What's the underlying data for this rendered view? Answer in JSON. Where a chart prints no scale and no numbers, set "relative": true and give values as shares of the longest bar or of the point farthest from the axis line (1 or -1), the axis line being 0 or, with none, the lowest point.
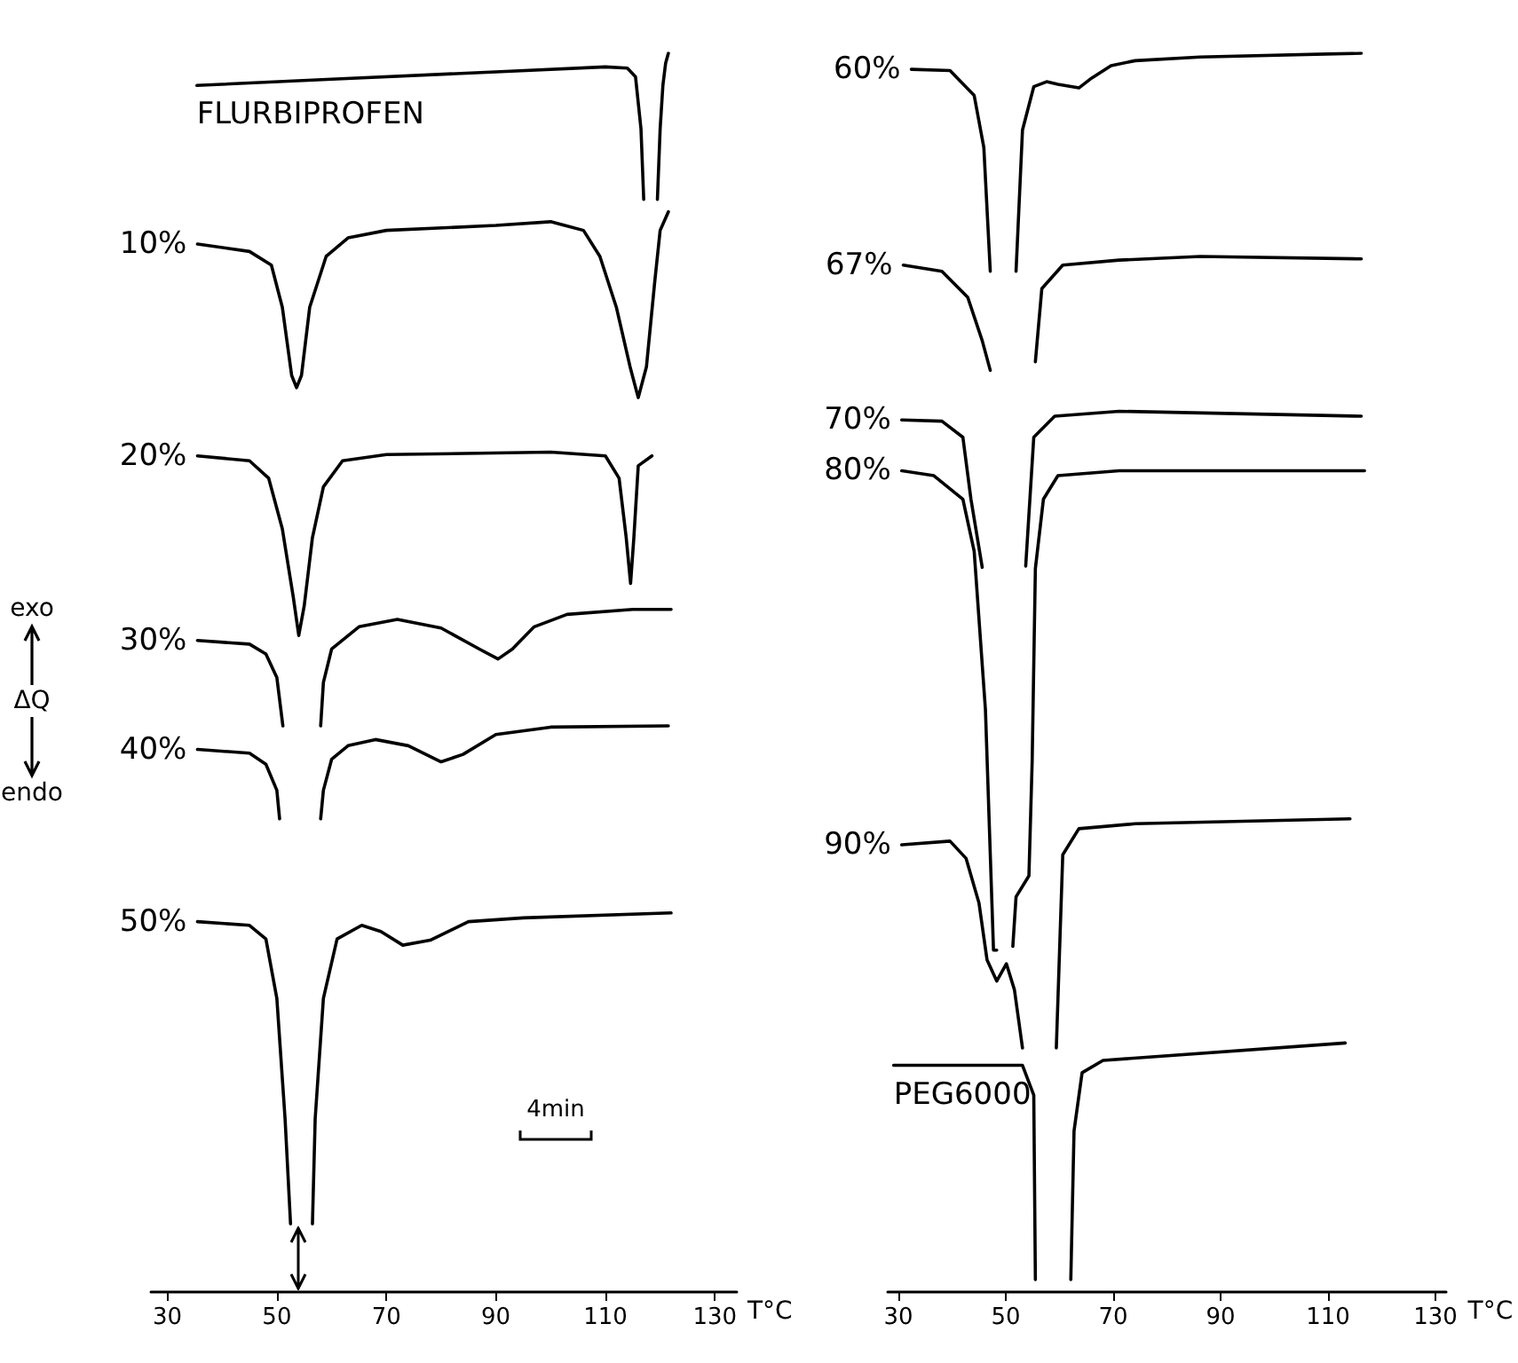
{
  "chart_data": [
    {
      "type": "line",
      "relative": true,
      "xlabel": "T°C",
      "ylabel": "ΔQ",
      "annotations": [
        "exo",
        "endo",
        "4min"
      ],
      "xlim": [
        27,
        134
      ],
      "xticks": [
        30,
        50,
        70,
        90,
        110,
        130
      ],
      "marker": "none",
      "line_style": "solid",
      "grid": false,
      "legend": false,
      "series": [
        {
          "name": "FLURBIPROFEN",
          "color": "#000000",
          "x": [
            35.4,
            60,
            90,
            110,
            114,
            115.5,
            116.5,
            117,
            118,
            119.5,
            120,
            120.5,
            121,
            121.5
          ],
          "values": [
            0.974,
            0.979,
            0.985,
            0.989,
            0.988,
            0.981,
            0.939,
            0.882,
            null,
            0.882,
            0.939,
            0.974,
            0.992,
            1.0
          ]
        },
        {
          "name": "10%",
          "color": "#000000",
          "x": [
            35.5,
            45,
            49,
            51,
            52.7,
            53.6,
            54.5,
            56,
            59,
            63,
            70,
            90,
            100,
            106,
            109,
            112,
            114.5,
            116,
            117.5,
            119,
            120,
            121.5
          ],
          "values": [
            0.846,
            0.84,
            0.829,
            0.795,
            0.74,
            0.73,
            0.74,
            0.795,
            0.836,
            0.851,
            0.857,
            0.861,
            0.864,
            0.857,
            0.836,
            0.795,
            0.747,
            0.722,
            0.747,
            0.815,
            0.857,
            0.872
          ]
        },
        {
          "name": "20%",
          "color": "#000000",
          "x": [
            35.5,
            45,
            48.5,
            51,
            53,
            54,
            55,
            56.5,
            58.5,
            62,
            70,
            100,
            110,
            112.5,
            113.8,
            114.6,
            115.2,
            116,
            118.5
          ],
          "values": [
            0.675,
            0.671,
            0.657,
            0.616,
            0.561,
            0.53,
            0.554,
            0.609,
            0.65,
            0.671,
            0.676,
            0.678,
            0.675,
            0.657,
            0.609,
            0.572,
            0.609,
            0.667,
            0.675
          ]
        },
        {
          "name": "30%",
          "color": "#000000",
          "x": [
            35.5,
            45,
            48,
            50,
            51.1,
            54,
            58,
            58.5,
            60,
            65,
            72,
            80,
            87,
            90.4,
            93,
            97,
            103,
            115,
            122
          ],
          "values": [
            0.526,
            0.523,
            0.515,
            0.496,
            0.457,
            null,
            0.457,
            0.492,
            0.519,
            0.537,
            0.543,
            0.536,
            0.519,
            0.511,
            0.519,
            0.537,
            0.547,
            0.551,
            0.551
          ]
        },
        {
          "name": "40%",
          "color": "#000000",
          "x": [
            35.5,
            45,
            48,
            50,
            50.5,
            54,
            58,
            58.5,
            60,
            63,
            68,
            74,
            80,
            84,
            90,
            100,
            121.5
          ],
          "values": [
            0.438,
            0.435,
            0.426,
            0.405,
            0.382,
            null,
            0.382,
            0.405,
            0.43,
            0.441,
            0.446,
            0.441,
            0.428,
            0.434,
            0.45,
            0.456,
            0.457
          ]
        },
        {
          "name": "50%",
          "color": "#000000",
          "x": [
            35.5,
            45,
            48,
            50,
            51.5,
            52.5,
            54.5,
            56.5,
            57,
            58.5,
            61,
            65.5,
            69,
            73,
            78,
            85,
            95,
            122
          ],
          "values": [
            0.299,
            0.296,
            0.285,
            0.237,
            0.14,
            0.055,
            null,
            0.055,
            0.14,
            0.237,
            0.285,
            0.296,
            0.291,
            0.28,
            0.284,
            0.299,
            0.302,
            0.306
          ]
        }
      ]
    },
    {
      "type": "line",
      "relative": true,
      "xlabel": "T°C",
      "xlim": [
        28,
        132
      ],
      "xticks": [
        30,
        50,
        70,
        90,
        110,
        130
      ],
      "marker": "none",
      "line_style": "solid",
      "grid": false,
      "legend": false,
      "series": [
        {
          "name": "60%",
          "color": "#000000",
          "x": [
            32.4,
            39.6,
            44.1,
            45.9,
            47.1,
            49.5,
            51.9,
            53.1,
            55.2,
            57.6,
            59.7,
            63.6,
            66,
            69.6,
            74.1,
            86.2,
            116.2
          ],
          "values": [
            0.987,
            0.986,
            0.966,
            0.924,
            0.824,
            null,
            0.824,
            0.938,
            0.973,
            0.977,
            0.975,
            0.972,
            0.98,
            0.99,
            0.994,
            0.997,
            1.0
          ]
        },
        {
          "name": "67%",
          "color": "#000000",
          "x": [
            30.9,
            38.1,
            42.9,
            45.6,
            47.1,
            50,
            55.5,
            56.7,
            60.6,
            71.1,
            86.2,
            116.2
          ],
          "values": [
            0.829,
            0.824,
            0.803,
            0.768,
            0.744,
            null,
            0.751,
            0.81,
            0.829,
            0.833,
            0.836,
            0.834
          ]
        },
        {
          "name": "70%",
          "color": "#000000",
          "x": [
            30.6,
            38.1,
            42,
            43.5,
            45.6,
            50,
            53.7,
            55.2,
            59.1,
            71.1,
            116.2
          ],
          "values": [
            0.704,
            0.703,
            0.69,
            0.64,
            0.585,
            null,
            0.586,
            0.69,
            0.707,
            0.711,
            0.707
          ]
        },
        {
          "name": "80%",
          "color": "#000000",
          "x": [
            30.6,
            36.6,
            42,
            44.1,
            46.2,
            47.7,
            48.3,
            49.5,
            51.3,
            51.9,
            54.3,
            54.9,
            55.5,
            57,
            59.7,
            71.1,
            116.8
          ],
          "values": [
            0.663,
            0.659,
            0.64,
            0.598,
            0.47,
            0.276,
            0.276,
            null,
            0.279,
            0.319,
            0.336,
            0.428,
            0.584,
            0.64,
            0.659,
            0.663,
            0.663
          ]
        },
        {
          "name": "90%",
          "color": "#000000",
          "x": [
            30.6,
            39.6,
            42.6,
            45,
            46.5,
            48.3,
            50.1,
            51.6,
            53.1,
            55,
            59.4,
            60.6,
            63.6,
            74.1,
            114.1
          ],
          "values": [
            0.361,
            0.364,
            0.35,
            0.314,
            0.268,
            0.251,
            0.265,
            0.244,
            0.197,
            null,
            0.197,
            0.353,
            0.374,
            0.378,
            0.382
          ]
        },
        {
          "name": "PEG6000",
          "color": "#000000",
          "x": [
            29.1,
            53.1,
            55.2,
            55.5,
            58,
            62.1,
            62.7,
            64.2,
            68.1,
            113.2
          ],
          "values": [
            0.183,
            0.183,
            0.159,
            0.01,
            null,
            0.01,
            0.13,
            0.177,
            0.187,
            0.201
          ]
        }
      ]
    }
  ]
}
